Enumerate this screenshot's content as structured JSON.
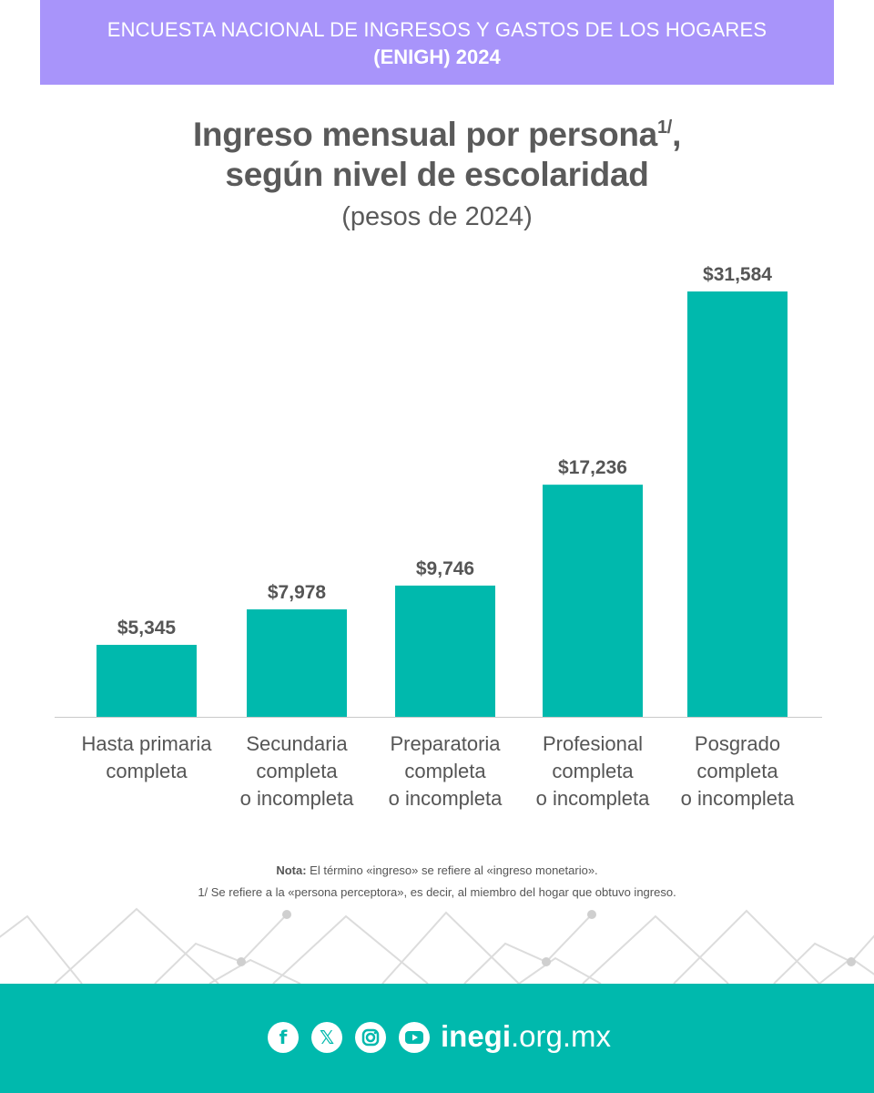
{
  "header": {
    "line1": "ENCUESTA NACIONAL DE INGRESOS Y GASTOS DE LOS HOGARES",
    "line2": "(ENIGH) 2024"
  },
  "chart_data": {
    "type": "bar",
    "title_line1": "Ingreso mensual por persona",
    "title_footnote_mark": "1/",
    "title_line1_end": ",",
    "title_line2": "según nivel de escolaridad",
    "subtitle": "(pesos de 2024)",
    "categories": [
      "Hasta primaria\ncompleta",
      "Secundaria\ncompleta\no incompleta",
      "Preparatoria\ncompleta\no incompleta",
      "Profesional\ncompleta\no incompleta",
      "Posgrado\ncompleta\no incompleta"
    ],
    "values": [
      5345,
      7978,
      9746,
      17236,
      31584
    ],
    "value_labels": [
      "$5,345",
      "$7,978",
      "$9,746",
      "$17,236",
      "$31,584"
    ],
    "bar_color": "#00b9ad",
    "grid": false
  },
  "notes": {
    "note_label": "Nota:",
    "note_text": " El término «ingreso» se refiere al «ingreso monetario».",
    "footnote": "1/ Se refiere a la «persona perceptora», es decir, al miembro del hogar que obtuvo ingreso."
  },
  "footer": {
    "social_icons": [
      "facebook-icon",
      "x-icon",
      "instagram-icon",
      "youtube-icon"
    ],
    "site_bold": "inegi",
    "site_rest": ".org.mx",
    "bg_color": "#00b9ad"
  },
  "colors": {
    "banner": "#a894fa",
    "text": "#555555"
  }
}
